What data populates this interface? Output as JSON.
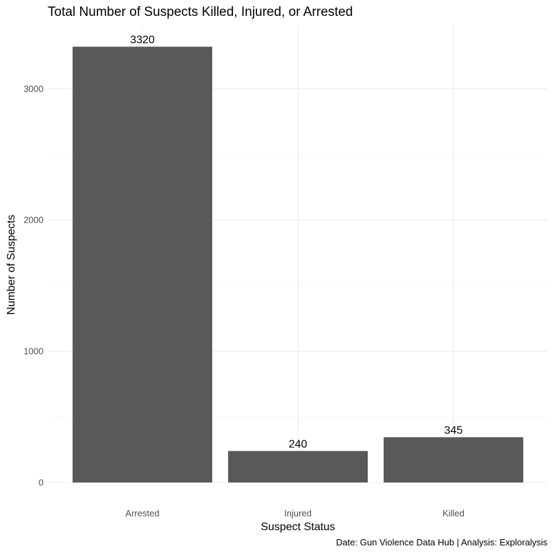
{
  "chart_data": {
    "type": "bar",
    "title": "Total Number of Suspects Killed, Injured, or Arrested",
    "xlabel": "Suspect Status",
    "ylabel": "Number of Suspects",
    "caption": "Date: Gun Violence Data Hub | Analysis: Exploralysis",
    "categories": [
      "Arrested",
      "Injured",
      "Killed"
    ],
    "values": [
      3320,
      240,
      345
    ],
    "data_labels": [
      "3320",
      "240",
      "345"
    ],
    "y_ticks": [
      0,
      1000,
      2000,
      3000
    ],
    "y_tick_labels": [
      "0",
      "1000",
      "2000",
      "3000"
    ],
    "ylim": [
      0,
      3486
    ],
    "bar_color": "#595959",
    "grid": true,
    "legend": "none"
  }
}
